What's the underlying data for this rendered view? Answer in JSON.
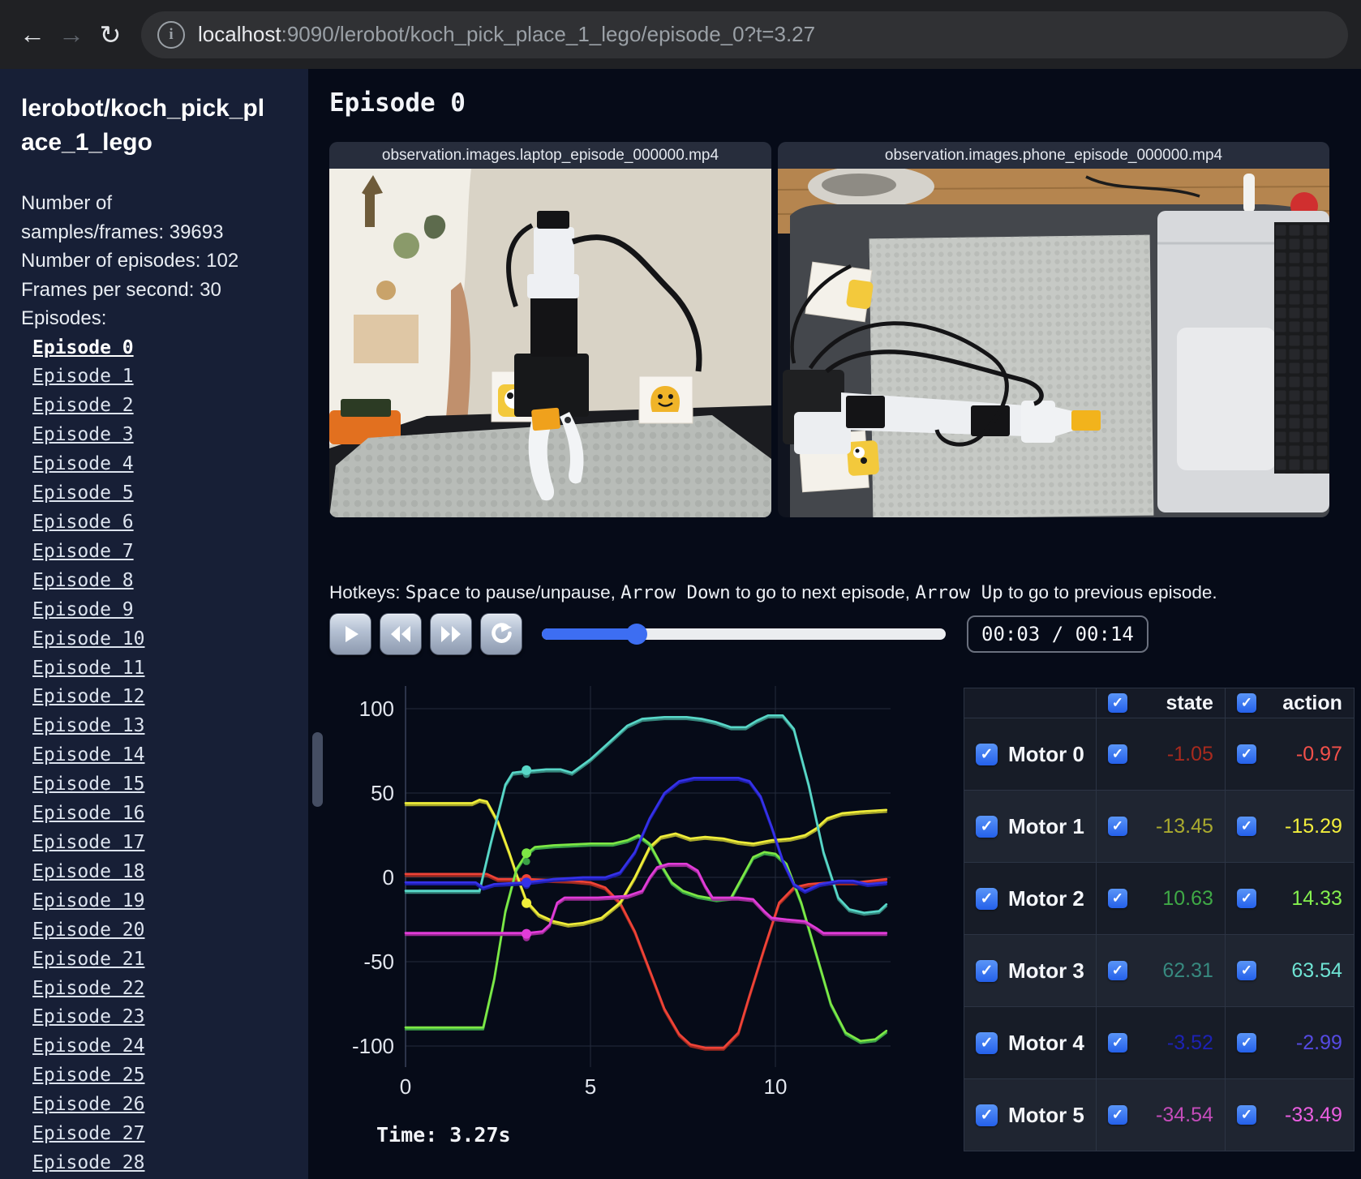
{
  "browser": {
    "url_host": "localhost",
    "url_rest": ":9090/lerobot/koch_pick_place_1_lego/episode_0?t=3.27"
  },
  "colors": {
    "accent_blue": "#3d6ef2",
    "checkbox_blue": "#2e6bf0",
    "sidebar_bg": "#171f36",
    "main_bg": "#060b18"
  },
  "sidebar": {
    "title": "lerobot/koch_pick_place_1_lego",
    "stats": [
      "Number of samples/frames: 39693",
      "Number of episodes: 102",
      "Frames per second: 30"
    ],
    "episodes_heading": "Episodes:",
    "active_episode": "Episode 0",
    "episodes": [
      "Episode 0",
      "Episode 1",
      "Episode 2",
      "Episode 3",
      "Episode 4",
      "Episode 5",
      "Episode 6",
      "Episode 7",
      "Episode 8",
      "Episode 9",
      "Episode 10",
      "Episode 11",
      "Episode 12",
      "Episode 13",
      "Episode 14",
      "Episode 15",
      "Episode 16",
      "Episode 17",
      "Episode 18",
      "Episode 19",
      "Episode 20",
      "Episode 21",
      "Episode 22",
      "Episode 23",
      "Episode 24",
      "Episode 25",
      "Episode 26",
      "Episode 27",
      "Episode 28"
    ]
  },
  "main": {
    "episode_title": "Episode 0",
    "videos": [
      {
        "label": "observation.images.laptop_episode_000000.mp4"
      },
      {
        "label": "observation.images.phone_episode_000000.mp4"
      }
    ],
    "hotkeys": {
      "prefix": "Hotkeys: ",
      "space_key": "Space",
      "after_space": " to pause/unpause, ",
      "down_key": "Arrow Down",
      "after_down": " to go to next episode, ",
      "up_key": "Arrow Up",
      "after_up": " to go to previous episode."
    },
    "player": {
      "time_display": "00:03 / 00:14",
      "progress_percent": 23.4
    }
  },
  "table": {
    "state_header": "state",
    "action_header": "action",
    "rows": [
      {
        "label": "Motor 0",
        "state": "-1.05",
        "action": "-0.97",
        "state_color": "#a82a1e",
        "action_color": "#f3504a"
      },
      {
        "label": "Motor 1",
        "state": "-13.45",
        "action": "-15.29",
        "state_color": "#aaaa2e",
        "action_color": "#f2ee3c"
      },
      {
        "label": "Motor 2",
        "state": "10.63",
        "action": "14.33",
        "state_color": "#3fa946",
        "action_color": "#84ef4e"
      },
      {
        "label": "Motor 3",
        "state": "62.31",
        "action": "63.54",
        "state_color": "#37897f",
        "action_color": "#6fe4d4"
      },
      {
        "label": "Motor 4",
        "state": "-3.52",
        "action": "-2.99",
        "state_color": "#1d22b4",
        "action_color": "#554ae2"
      },
      {
        "label": "Motor 5",
        "state": "-34.54",
        "action": "-33.49",
        "state_color": "#c44cba",
        "action_color": "#ea5ee0"
      }
    ]
  },
  "chart_data": {
    "type": "line",
    "title": "",
    "xlabel": "",
    "ylabel": "",
    "xticks": [
      0,
      5,
      10
    ],
    "yticks": [
      -100,
      -50,
      0,
      50,
      100
    ],
    "xlim": [
      0,
      13.2
    ],
    "ylim": [
      -112,
      112
    ],
    "grid": true,
    "legend_position": "none",
    "current_time": 3.27,
    "time_label": "Time: 3.27s",
    "series": [
      {
        "name": "Motor 0",
        "color": "#ef4337",
        "state_color": "#a02a20",
        "state": -1.05,
        "action": -0.97,
        "points": [
          [
            0,
            2
          ],
          [
            2.2,
            2
          ],
          [
            2.5,
            -1
          ],
          [
            3.27,
            -1
          ],
          [
            4.5,
            -2
          ],
          [
            5.0,
            -3
          ],
          [
            5.4,
            -6
          ],
          [
            5.8,
            -15
          ],
          [
            6.2,
            -32
          ],
          [
            6.6,
            -55
          ],
          [
            7.0,
            -78
          ],
          [
            7.4,
            -93
          ],
          [
            7.7,
            -99
          ],
          [
            8.1,
            -101
          ],
          [
            8.6,
            -101
          ],
          [
            9.0,
            -92
          ],
          [
            9.3,
            -70
          ],
          [
            9.7,
            -42
          ],
          [
            10.1,
            -15
          ],
          [
            10.5,
            -6
          ],
          [
            10.9,
            -4
          ],
          [
            11.5,
            -3
          ],
          [
            12.2,
            -3
          ],
          [
            13.0,
            -1
          ]
        ]
      },
      {
        "name": "Motor 1",
        "color": "#f0ee3a",
        "state_color": "#a8a82a",
        "state": -13.45,
        "action": -15.29,
        "points": [
          [
            0,
            44
          ],
          [
            1.8,
            44
          ],
          [
            2.0,
            46
          ],
          [
            2.2,
            45
          ],
          [
            2.5,
            33
          ],
          [
            2.8,
            15
          ],
          [
            3.0,
            2
          ],
          [
            3.27,
            -14
          ],
          [
            3.6,
            -22
          ],
          [
            4.0,
            -26
          ],
          [
            4.4,
            -28
          ],
          [
            4.8,
            -27
          ],
          [
            5.3,
            -24
          ],
          [
            5.8,
            -15
          ],
          [
            6.2,
            0
          ],
          [
            6.6,
            18
          ],
          [
            6.9,
            24
          ],
          [
            7.3,
            26
          ],
          [
            7.7,
            23
          ],
          [
            8.1,
            24
          ],
          [
            8.6,
            23
          ],
          [
            9.0,
            21
          ],
          [
            9.4,
            20
          ],
          [
            9.9,
            22
          ],
          [
            10.4,
            23
          ],
          [
            10.8,
            25
          ],
          [
            11.1,
            29
          ],
          [
            11.4,
            35
          ],
          [
            11.8,
            38
          ],
          [
            12.3,
            39
          ],
          [
            13.0,
            40
          ]
        ]
      },
      {
        "name": "Motor 2",
        "color": "#7de845",
        "state_color": "#3aa246",
        "state": 10.63,
        "action": 14.33,
        "points": [
          [
            0,
            -89
          ],
          [
            2.1,
            -89
          ],
          [
            2.4,
            -60
          ],
          [
            2.7,
            -20
          ],
          [
            3.0,
            5
          ],
          [
            3.27,
            14
          ],
          [
            3.5,
            18
          ],
          [
            4.0,
            19
          ],
          [
            5.0,
            20
          ],
          [
            5.6,
            20
          ],
          [
            6.0,
            22
          ],
          [
            6.3,
            25
          ],
          [
            6.6,
            20
          ],
          [
            6.9,
            8
          ],
          [
            7.2,
            -3
          ],
          [
            7.5,
            -8
          ],
          [
            7.9,
            -11
          ],
          [
            8.4,
            -13
          ],
          [
            8.8,
            -12
          ],
          [
            9.1,
            0
          ],
          [
            9.4,
            12
          ],
          [
            9.7,
            15
          ],
          [
            10.0,
            14
          ],
          [
            10.3,
            8
          ],
          [
            10.7,
            -15
          ],
          [
            11.1,
            -45
          ],
          [
            11.5,
            -75
          ],
          [
            11.9,
            -92
          ],
          [
            12.3,
            -97
          ],
          [
            12.7,
            -96
          ],
          [
            13.0,
            -91
          ]
        ]
      },
      {
        "name": "Motor 3",
        "color": "#58d7c8",
        "state_color": "#35877d",
        "state": 62.31,
        "action": 63.54,
        "points": [
          [
            0,
            -8
          ],
          [
            2.0,
            -8
          ],
          [
            2.3,
            20
          ],
          [
            2.7,
            55
          ],
          [
            2.9,
            62
          ],
          [
            3.27,
            63
          ],
          [
            3.8,
            64
          ],
          [
            4.2,
            64
          ],
          [
            4.5,
            62
          ],
          [
            5.0,
            70
          ],
          [
            5.5,
            80
          ],
          [
            6.0,
            90
          ],
          [
            6.4,
            94
          ],
          [
            7.0,
            95
          ],
          [
            7.6,
            95
          ],
          [
            8.0,
            94
          ],
          [
            8.4,
            92
          ],
          [
            8.8,
            89
          ],
          [
            9.2,
            89
          ],
          [
            9.5,
            93
          ],
          [
            9.8,
            96
          ],
          [
            10.2,
            96
          ],
          [
            10.5,
            88
          ],
          [
            10.9,
            55
          ],
          [
            11.3,
            15
          ],
          [
            11.7,
            -12
          ],
          [
            12.0,
            -19
          ],
          [
            12.4,
            -21
          ],
          [
            12.8,
            -20
          ],
          [
            13.0,
            -16
          ]
        ]
      },
      {
        "name": "Motor 4",
        "color": "#3531e8",
        "state_color": "#1d1daa",
        "state": -3.52,
        "action": -2.99,
        "points": [
          [
            0,
            -3
          ],
          [
            1.9,
            -3
          ],
          [
            2.1,
            -6
          ],
          [
            2.4,
            -4
          ],
          [
            3.27,
            -3
          ],
          [
            4.0,
            -1
          ],
          [
            4.8,
            0
          ],
          [
            5.4,
            0
          ],
          [
            5.8,
            3
          ],
          [
            6.2,
            15
          ],
          [
            6.6,
            35
          ],
          [
            7.0,
            50
          ],
          [
            7.4,
            57
          ],
          [
            7.8,
            59
          ],
          [
            8.4,
            59
          ],
          [
            9.0,
            59
          ],
          [
            9.3,
            57
          ],
          [
            9.6,
            48
          ],
          [
            9.9,
            30
          ],
          [
            10.2,
            10
          ],
          [
            10.5,
            -4
          ],
          [
            10.8,
            -8
          ],
          [
            11.2,
            -4
          ],
          [
            11.7,
            -2
          ],
          [
            12.1,
            -2
          ],
          [
            12.5,
            -4
          ],
          [
            13.0,
            -3
          ]
        ]
      },
      {
        "name": "Motor 5",
        "color": "#e13cd8",
        "state_color": "#9c2a96",
        "state": -34.54,
        "action": -33.49,
        "points": [
          [
            0,
            -33
          ],
          [
            3.3,
            -33
          ],
          [
            3.7,
            -32
          ],
          [
            3.9,
            -28
          ],
          [
            4.1,
            -15
          ],
          [
            4.3,
            -12
          ],
          [
            5.2,
            -12
          ],
          [
            6.0,
            -11
          ],
          [
            6.4,
            -8
          ],
          [
            6.6,
            0
          ],
          [
            6.8,
            6
          ],
          [
            7.1,
            8
          ],
          [
            7.6,
            8
          ],
          [
            7.9,
            4
          ],
          [
            8.1,
            -5
          ],
          [
            8.3,
            -12
          ],
          [
            9.0,
            -12
          ],
          [
            9.4,
            -13
          ],
          [
            9.7,
            -20
          ],
          [
            9.9,
            -24
          ],
          [
            10.3,
            -25
          ],
          [
            10.8,
            -26
          ],
          [
            11.1,
            -30
          ],
          [
            11.3,
            -33
          ],
          [
            12.0,
            -33
          ],
          [
            13.0,
            -33
          ]
        ]
      }
    ]
  }
}
